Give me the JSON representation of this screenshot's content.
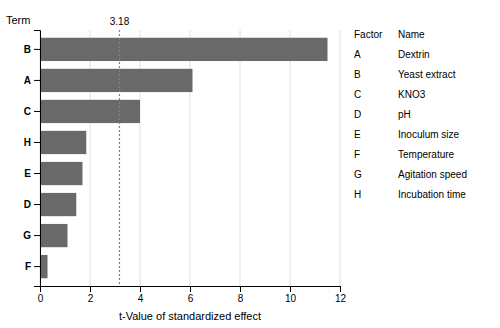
{
  "chart_data": {
    "type": "bar",
    "orientation": "horizontal",
    "categories": [
      "B",
      "A",
      "C",
      "H",
      "E",
      "D",
      "G",
      "F"
    ],
    "values": [
      11.5,
      6.1,
      4.0,
      1.85,
      1.7,
      1.45,
      1.1,
      0.3
    ],
    "color": "#696969",
    "xlabel": "t-Value of standardized effect",
    "ylabel": "Term",
    "xlim": [
      0,
      12
    ],
    "xticks": [
      0,
      2,
      4,
      6,
      8,
      10,
      12
    ],
    "grid": true,
    "annotations": [
      {
        "value": 3.18,
        "label": "3.18"
      }
    ],
    "legend_table": {
      "headers": [
        "Factor",
        "Name"
      ],
      "rows": [
        [
          "A",
          "Dextrin"
        ],
        [
          "B",
          "Yeast extract"
        ],
        [
          "C",
          "KNO3"
        ],
        [
          "D",
          "pH"
        ],
        [
          "E",
          "Inoculum size"
        ],
        [
          "F",
          "Temperature"
        ],
        [
          "G",
          "Agitation speed"
        ],
        [
          "H",
          "Incubation time"
        ]
      ]
    }
  }
}
